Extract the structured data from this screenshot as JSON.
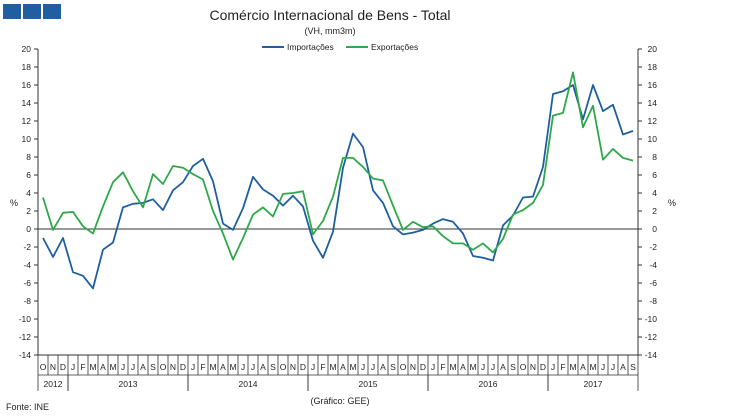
{
  "chart_data": {
    "type": "line",
    "title": "Comércio Internacional de Bens - Total",
    "subtitle": "(VH, mm3m)",
    "ylabel_left": "%",
    "ylabel_right": "%",
    "ylim": [
      -14,
      20
    ],
    "yticks": [
      -14,
      -12,
      -10,
      -8,
      -6,
      -4,
      -2,
      0,
      2,
      4,
      6,
      8,
      10,
      12,
      14,
      16,
      18,
      20
    ],
    "legend_position": "top-center",
    "grid": false,
    "month_labels": [
      "O",
      "N",
      "D",
      "J",
      "F",
      "M",
      "A",
      "M",
      "J",
      "J",
      "A",
      "S",
      "O",
      "N",
      "D",
      "J",
      "F",
      "M",
      "A",
      "M",
      "J",
      "J",
      "A",
      "S",
      "O",
      "N",
      "D",
      "J",
      "F",
      "M",
      "A",
      "M",
      "J",
      "J",
      "A",
      "S",
      "O",
      "N",
      "D",
      "J",
      "F",
      "M",
      "A",
      "M",
      "J",
      "J",
      "A",
      "S",
      "O",
      "N",
      "D",
      "J",
      "F",
      "M",
      "A",
      "M",
      "J",
      "J",
      "A",
      "S"
    ],
    "years": [
      {
        "label": "2012",
        "start": 0,
        "end": 3
      },
      {
        "label": "2013",
        "start": 3,
        "end": 15
      },
      {
        "label": "2014",
        "start": 15,
        "end": 27
      },
      {
        "label": "2015",
        "start": 27,
        "end": 39
      },
      {
        "label": "2016",
        "start": 39,
        "end": 51
      },
      {
        "label": "2017",
        "start": 51,
        "end": 60
      }
    ],
    "series": [
      {
        "name": "Importações",
        "color": "#1f5f9f",
        "values": [
          -1,
          -3.1,
          -1,
          -4.8,
          -5.2,
          -6.6,
          -2.3,
          -1.5,
          2.4,
          2.8,
          2.9,
          3.3,
          2.1,
          4.3,
          5.2,
          7,
          7.8,
          5.3,
          0.6,
          -0.1,
          2.3,
          5.8,
          4.4,
          3.7,
          2.6,
          3.7,
          2.5,
          -1.3,
          -3.2,
          -0.3,
          6.8,
          10.6,
          9.1,
          4.3,
          2.9,
          0.3,
          -0.6,
          -0.4,
          -0.1,
          0.6,
          1.1,
          0.8,
          -0.5,
          -3,
          -3.2,
          -3.5,
          0.4,
          1.5,
          3.5,
          3.6,
          6.9,
          15,
          15.3,
          16,
          12.2,
          16,
          13.1,
          13.8,
          10.5,
          10.9
        ]
      },
      {
        "name": "Exportações",
        "color": "#2ea84a",
        "values": [
          3.5,
          -0.1,
          1.8,
          1.9,
          0.3,
          -0.5,
          2.5,
          5.2,
          6.3,
          4.2,
          2.4,
          6.1,
          5,
          7,
          6.8,
          6.1,
          5.5,
          2,
          -0.5,
          -3.4,
          -1,
          1.6,
          2.4,
          1.4,
          3.9,
          4,
          4.2,
          -0.6,
          0.9,
          3.6,
          7.9,
          7.9,
          6.9,
          5.6,
          5.4,
          2.6,
          -0.1,
          0.8,
          0.2,
          0.3,
          -0.8,
          -1.6,
          -1.6,
          -2.3,
          -1.6,
          -2.6,
          -1.1,
          1.6,
          2.1,
          2.9,
          4.9,
          12.6,
          12.9,
          17.4,
          11.3,
          13.7,
          7.7,
          8.9,
          7.9,
          7.6
        ]
      }
    ]
  },
  "footer": {
    "source": "Fonte: INE",
    "credit": "(Gráfico: GEE)"
  },
  "brand_color": "#1f5f9f"
}
